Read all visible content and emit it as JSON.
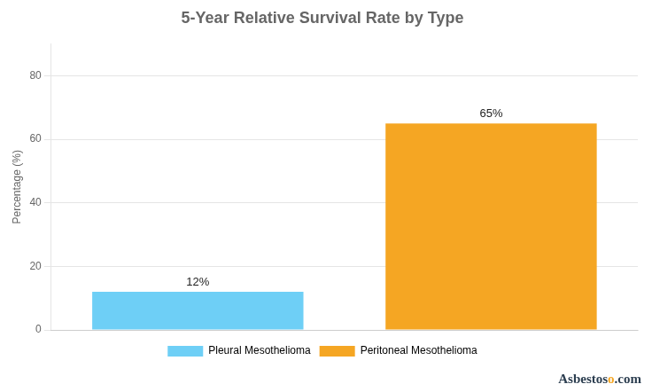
{
  "chart_data": {
    "type": "bar",
    "title": "5-Year Relative Survival Rate by Type",
    "ylabel": "Percentage (%)",
    "categories": [
      "Pleural Mesothelioma",
      "Peritoneal Mesothelioma"
    ],
    "values": [
      12,
      65
    ],
    "value_labels": [
      "12%",
      "65%"
    ],
    "colors": [
      "#6ECFF6",
      "#F5A623"
    ],
    "ylim": [
      0,
      90
    ],
    "yticks": [
      0,
      20,
      40,
      60,
      80
    ],
    "grid": true,
    "legend": "bottom",
    "data_labels": true,
    "tick_labels": "y",
    "annotations": [
      {
        "text": "Asbestos",
        "color": "#2c3e50"
      },
      {
        "text": "o",
        "color": "#F5A623"
      },
      {
        "text": ".com",
        "color": "#2c3e50"
      }
    ]
  }
}
